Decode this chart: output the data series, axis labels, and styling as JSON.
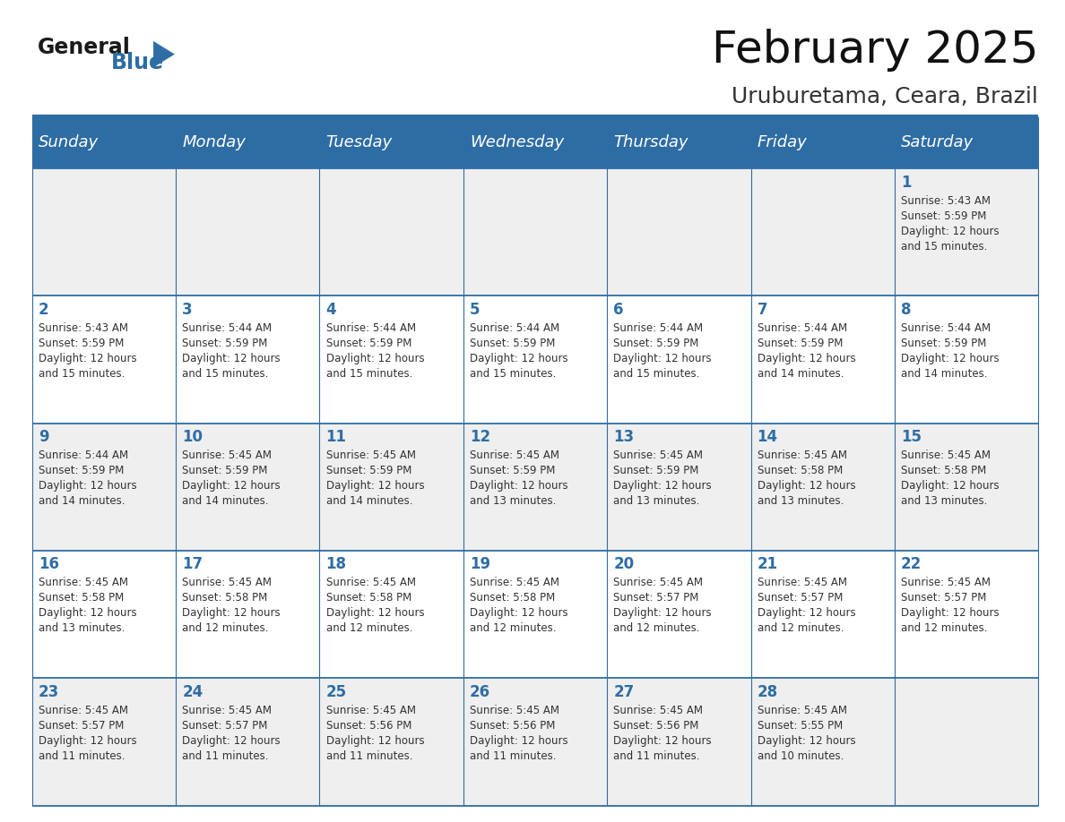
{
  "title": "February 2025",
  "subtitle": "Uruburetama, Ceara, Brazil",
  "header_bg": "#2E6DA4",
  "header_text": "#FFFFFF",
  "cell_bg_odd": "#EFEFEF",
  "cell_bg_even": "#FFFFFF",
  "day_number_color": "#2E6DA4",
  "cell_text_color": "#333333",
  "line_color": "#2E6DA4",
  "days_of_week": [
    "Sunday",
    "Monday",
    "Tuesday",
    "Wednesday",
    "Thursday",
    "Friday",
    "Saturday"
  ],
  "title_fontsize": 36,
  "subtitle_fontsize": 18,
  "header_fontsize": 13,
  "day_num_fontsize": 12,
  "cell_text_fontsize": 8.5,
  "calendar": [
    [
      null,
      null,
      null,
      null,
      null,
      null,
      {
        "day": 1,
        "sunrise": "5:43 AM",
        "sunset": "5:59 PM",
        "daylight": "12 hours and 15 minutes."
      }
    ],
    [
      {
        "day": 2,
        "sunrise": "5:43 AM",
        "sunset": "5:59 PM",
        "daylight": "12 hours and 15 minutes."
      },
      {
        "day": 3,
        "sunrise": "5:44 AM",
        "sunset": "5:59 PM",
        "daylight": "12 hours and 15 minutes."
      },
      {
        "day": 4,
        "sunrise": "5:44 AM",
        "sunset": "5:59 PM",
        "daylight": "12 hours and 15 minutes."
      },
      {
        "day": 5,
        "sunrise": "5:44 AM",
        "sunset": "5:59 PM",
        "daylight": "12 hours and 15 minutes."
      },
      {
        "day": 6,
        "sunrise": "5:44 AM",
        "sunset": "5:59 PM",
        "daylight": "12 hours and 15 minutes."
      },
      {
        "day": 7,
        "sunrise": "5:44 AM",
        "sunset": "5:59 PM",
        "daylight": "12 hours and 14 minutes."
      },
      {
        "day": 8,
        "sunrise": "5:44 AM",
        "sunset": "5:59 PM",
        "daylight": "12 hours and 14 minutes."
      }
    ],
    [
      {
        "day": 9,
        "sunrise": "5:44 AM",
        "sunset": "5:59 PM",
        "daylight": "12 hours and 14 minutes."
      },
      {
        "day": 10,
        "sunrise": "5:45 AM",
        "sunset": "5:59 PM",
        "daylight": "12 hours and 14 minutes."
      },
      {
        "day": 11,
        "sunrise": "5:45 AM",
        "sunset": "5:59 PM",
        "daylight": "12 hours and 14 minutes."
      },
      {
        "day": 12,
        "sunrise": "5:45 AM",
        "sunset": "5:59 PM",
        "daylight": "12 hours and 13 minutes."
      },
      {
        "day": 13,
        "sunrise": "5:45 AM",
        "sunset": "5:59 PM",
        "daylight": "12 hours and 13 minutes."
      },
      {
        "day": 14,
        "sunrise": "5:45 AM",
        "sunset": "5:58 PM",
        "daylight": "12 hours and 13 minutes."
      },
      {
        "day": 15,
        "sunrise": "5:45 AM",
        "sunset": "5:58 PM",
        "daylight": "12 hours and 13 minutes."
      }
    ],
    [
      {
        "day": 16,
        "sunrise": "5:45 AM",
        "sunset": "5:58 PM",
        "daylight": "12 hours and 13 minutes."
      },
      {
        "day": 17,
        "sunrise": "5:45 AM",
        "sunset": "5:58 PM",
        "daylight": "12 hours and 12 minutes."
      },
      {
        "day": 18,
        "sunrise": "5:45 AM",
        "sunset": "5:58 PM",
        "daylight": "12 hours and 12 minutes."
      },
      {
        "day": 19,
        "sunrise": "5:45 AM",
        "sunset": "5:58 PM",
        "daylight": "12 hours and 12 minutes."
      },
      {
        "day": 20,
        "sunrise": "5:45 AM",
        "sunset": "5:57 PM",
        "daylight": "12 hours and 12 minutes."
      },
      {
        "day": 21,
        "sunrise": "5:45 AM",
        "sunset": "5:57 PM",
        "daylight": "12 hours and 12 minutes."
      },
      {
        "day": 22,
        "sunrise": "5:45 AM",
        "sunset": "5:57 PM",
        "daylight": "12 hours and 12 minutes."
      }
    ],
    [
      {
        "day": 23,
        "sunrise": "5:45 AM",
        "sunset": "5:57 PM",
        "daylight": "12 hours and 11 minutes."
      },
      {
        "day": 24,
        "sunrise": "5:45 AM",
        "sunset": "5:57 PM",
        "daylight": "12 hours and 11 minutes."
      },
      {
        "day": 25,
        "sunrise": "5:45 AM",
        "sunset": "5:56 PM",
        "daylight": "12 hours and 11 minutes."
      },
      {
        "day": 26,
        "sunrise": "5:45 AM",
        "sunset": "5:56 PM",
        "daylight": "12 hours and 11 minutes."
      },
      {
        "day": 27,
        "sunrise": "5:45 AM",
        "sunset": "5:56 PM",
        "daylight": "12 hours and 11 minutes."
      },
      {
        "day": 28,
        "sunrise": "5:45 AM",
        "sunset": "5:55 PM",
        "daylight": "12 hours and 10 minutes."
      },
      null
    ]
  ]
}
